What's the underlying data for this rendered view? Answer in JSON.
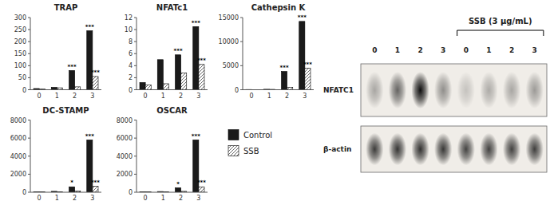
{
  "chart_data": [
    {
      "type": "bar",
      "title": "TRAP",
      "categories": [
        "0",
        "1",
        "2",
        "3"
      ],
      "series": [
        {
          "name": "Control",
          "color": "#1a1a1a",
          "values": [
            5,
            10,
            80,
            245
          ],
          "annotations": [
            null,
            null,
            "***",
            "***"
          ]
        },
        {
          "name": "SSB",
          "color": "#ffffff",
          "values": [
            3,
            8,
            12,
            55
          ],
          "annotations": [
            null,
            null,
            null,
            "***"
          ]
        }
      ],
      "ylim": [
        0,
        300
      ],
      "yticks": [
        0,
        50,
        100,
        150,
        200,
        250,
        300
      ],
      "grid": false
    },
    {
      "type": "bar",
      "title": "NFATc1",
      "categories": [
        "0",
        "1",
        "2",
        "3"
      ],
      "series": [
        {
          "name": "Control",
          "color": "#1a1a1a",
          "values": [
            1.2,
            5.0,
            5.8,
            10.5
          ],
          "annotations": [
            null,
            null,
            "***",
            "***"
          ]
        },
        {
          "name": "SSB",
          "color": "#ffffff",
          "values": [
            0.8,
            1.0,
            2.8,
            4.2
          ],
          "annotations": [
            null,
            null,
            null,
            "***"
          ]
        }
      ],
      "ylim": [
        0,
        12
      ],
      "yticks": [
        0,
        2,
        4,
        6,
        8,
        10,
        12
      ],
      "grid": false
    },
    {
      "type": "bar",
      "title": "Cathepsin K",
      "categories": [
        "0",
        "1",
        "2",
        "3"
      ],
      "series": [
        {
          "name": "Control",
          "color": "#1a1a1a",
          "values": [
            50,
            100,
            3800,
            14200
          ],
          "annotations": [
            null,
            null,
            "***",
            "***"
          ]
        },
        {
          "name": "SSB",
          "color": "#ffffff",
          "values": [
            30,
            80,
            500,
            4500
          ],
          "annotations": [
            null,
            null,
            null,
            "***"
          ]
        }
      ],
      "ylim": [
        0,
        15000
      ],
      "yticks": [
        0,
        5000,
        10000,
        15000
      ],
      "grid": false
    },
    {
      "type": "bar",
      "title": "DC-STAMP",
      "categories": [
        "0",
        "1",
        "2",
        "3"
      ],
      "series": [
        {
          "name": "Control",
          "color": "#1a1a1a",
          "values": [
            50,
            100,
            600,
            5800
          ],
          "annotations": [
            null,
            null,
            "*",
            "***"
          ]
        },
        {
          "name": "SSB",
          "color": "#ffffff",
          "values": [
            30,
            60,
            150,
            650
          ],
          "annotations": [
            null,
            null,
            null,
            "***"
          ]
        }
      ],
      "ylim": [
        0,
        8000
      ],
      "yticks": [
        0,
        2000,
        4000,
        6000,
        8000
      ],
      "grid": false
    },
    {
      "type": "bar",
      "title": "OSCAR",
      "categories": [
        "0",
        "1",
        "2",
        "3"
      ],
      "series": [
        {
          "name": "Control",
          "color": "#1a1a1a",
          "values": [
            50,
            80,
            500,
            5800
          ],
          "annotations": [
            null,
            null,
            "*",
            "***"
          ]
        },
        {
          "name": "SSB",
          "color": "#ffffff",
          "values": [
            30,
            50,
            100,
            600
          ],
          "annotations": [
            null,
            null,
            null,
            "***"
          ]
        }
      ],
      "ylim": [
        0,
        8000
      ],
      "yticks": [
        0,
        2000,
        4000,
        6000,
        8000
      ],
      "grid": false,
      "legend": "upper left"
    },
    {
      "type": "heatmap",
      "title": "SSB (3 μg/mL)",
      "categories": [
        "0",
        "1",
        "2",
        "3",
        "0",
        "1",
        "2",
        "3"
      ],
      "series": [
        {
          "name": "NFATC1",
          "values": [
            0.3,
            0.58,
            0.95,
            0.4,
            0.18,
            0.28,
            0.3,
            0.35
          ]
        },
        {
          "name": "β-actin",
          "values": [
            0.75,
            0.78,
            0.8,
            0.77,
            0.72,
            0.73,
            0.73,
            0.74
          ]
        }
      ]
    }
  ]
}
